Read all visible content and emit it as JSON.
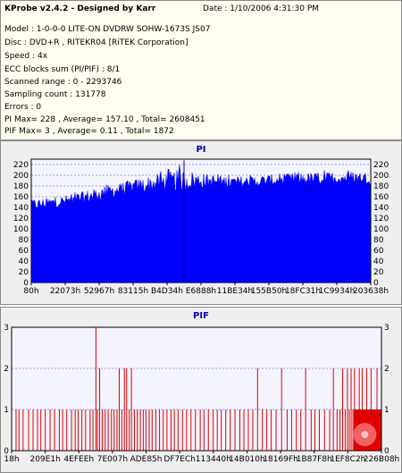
{
  "header": {
    "title": "KProbe v2.4.2 - Designed by Karr",
    "date": "Date : 1/10/2006 4:31:30 PM",
    "lines": [
      "Model : 1-0-0-0 LITE-ON DVDRW SOHW-1673S JS07",
      "Disc : DVD+R , RITEKR04 [RiTEK Corporation]",
      "Speed : 4x",
      "ECC blocks sum (PI/PIF) : 8/1",
      "Scanned range : 0 - 2293746",
      "Sampling count : 131778",
      "Errors : 0",
      "PI Max= 228 , Average= 157.10 , Total= 2608451",
      "PIF Max= 3 , Average= 0.11 , Total= 1872"
    ]
  },
  "colors": {
    "pi_fill": "#0000ff",
    "pif_bar": "#e00000",
    "plot_bg": "#f4f4ff",
    "grid": "#7f7fcf",
    "title": "#0000b0"
  },
  "chart_data": [
    {
      "type": "area",
      "title": "PI",
      "ylim": [
        0,
        230
      ],
      "yticks": [
        "0",
        "20",
        "40",
        "60",
        "80",
        "100",
        "120",
        "140",
        "160",
        "180",
        "200",
        "220"
      ],
      "xticks": [
        "80h",
        "22073h",
        "52967h",
        "83115h",
        "B4D34h",
        "E6888h",
        "11BE34h",
        "155B50h",
        "18FC31h",
        "1C9934h",
        "203638h"
      ],
      "grid": true,
      "profile": {
        "x_fraction": [
          0,
          0.05,
          0.1,
          0.15,
          0.2,
          0.25,
          0.3,
          0.35,
          0.4,
          0.45,
          0.5,
          0.55,
          0.6,
          0.65,
          0.7,
          0.75,
          0.8,
          0.85,
          0.9,
          0.95,
          1.0
        ],
        "avg_y": [
          145,
          148,
          152,
          158,
          165,
          172,
          178,
          183,
          188,
          190,
          190,
          188,
          187,
          188,
          190,
          192,
          193,
          194,
          195,
          196,
          195
        ],
        "max_y": [
          158,
          160,
          165,
          172,
          180,
          188,
          196,
          205,
          215,
          228,
          210,
          205,
          202,
          204,
          206,
          208,
          210,
          210,
          212,
          212,
          208
        ],
        "min_y": [
          130,
          132,
          136,
          140,
          146,
          152,
          158,
          162,
          166,
          170,
          172,
          172,
          172,
          174,
          176,
          178,
          178,
          180,
          180,
          180,
          178
        ]
      }
    },
    {
      "type": "bar",
      "title": "PIF",
      "ylim": [
        0,
        3
      ],
      "yticks": [
        "0",
        "1",
        "2",
        "3"
      ],
      "xticks": [
        "18h",
        "209E1h",
        "4EFEEh",
        "7E007h",
        "ADE85h",
        "DF7ECh",
        "113440h",
        "14B010h",
        "18169Fh",
        "1B87F8h",
        "1EF8C2h",
        "226B08h"
      ],
      "grid": true,
      "max_value": 3,
      "bars": [
        [
          0.012,
          1
        ],
        [
          0.02,
          1
        ],
        [
          0.031,
          1
        ],
        [
          0.046,
          1
        ],
        [
          0.058,
          1
        ],
        [
          0.07,
          1
        ],
        [
          0.079,
          1
        ],
        [
          0.091,
          1
        ],
        [
          0.104,
          1
        ],
        [
          0.116,
          1
        ],
        [
          0.129,
          1
        ],
        [
          0.138,
          1
        ],
        [
          0.149,
          1
        ],
        [
          0.162,
          1
        ],
        [
          0.172,
          1
        ],
        [
          0.18,
          1
        ],
        [
          0.19,
          1
        ],
        [
          0.2,
          1
        ],
        [
          0.212,
          1
        ],
        [
          0.22,
          1
        ],
        [
          0.228,
          3
        ],
        [
          0.232,
          1
        ],
        [
          0.238,
          2
        ],
        [
          0.245,
          1
        ],
        [
          0.253,
          1
        ],
        [
          0.261,
          1
        ],
        [
          0.27,
          1
        ],
        [
          0.277,
          1
        ],
        [
          0.285,
          1
        ],
        [
          0.291,
          2
        ],
        [
          0.298,
          1
        ],
        [
          0.305,
          2
        ],
        [
          0.311,
          2
        ],
        [
          0.318,
          1
        ],
        [
          0.324,
          2
        ],
        [
          0.332,
          1
        ],
        [
          0.34,
          1
        ],
        [
          0.348,
          1
        ],
        [
          0.356,
          1
        ],
        [
          0.363,
          1
        ],
        [
          0.372,
          1
        ],
        [
          0.38,
          1
        ],
        [
          0.39,
          1
        ],
        [
          0.4,
          1
        ],
        [
          0.41,
          1
        ],
        [
          0.42,
          1
        ],
        [
          0.431,
          1
        ],
        [
          0.44,
          1
        ],
        [
          0.45,
          1
        ],
        [
          0.462,
          1
        ],
        [
          0.473,
          1
        ],
        [
          0.485,
          1
        ],
        [
          0.497,
          1
        ],
        [
          0.51,
          1
        ],
        [
          0.52,
          1
        ],
        [
          0.532,
          1
        ],
        [
          0.545,
          1
        ],
        [
          0.556,
          1
        ],
        [
          0.567,
          1
        ],
        [
          0.579,
          1
        ],
        [
          0.591,
          1
        ],
        [
          0.604,
          1
        ],
        [
          0.617,
          1
        ],
        [
          0.628,
          1
        ],
        [
          0.64,
          1
        ],
        [
          0.652,
          1
        ],
        [
          0.665,
          2
        ],
        [
          0.678,
          1
        ],
        [
          0.69,
          1
        ],
        [
          0.702,
          1
        ],
        [
          0.715,
          1
        ],
        [
          0.73,
          2
        ],
        [
          0.745,
          1
        ],
        [
          0.757,
          1
        ],
        [
          0.77,
          1
        ],
        [
          0.782,
          1
        ],
        [
          0.795,
          2
        ],
        [
          0.81,
          1
        ],
        [
          0.82,
          1
        ],
        [
          0.832,
          1
        ],
        [
          0.846,
          1
        ],
        [
          0.86,
          1
        ],
        [
          0.87,
          2
        ],
        [
          0.88,
          1
        ],
        [
          0.888,
          1
        ],
        [
          0.895,
          2
        ],
        [
          0.902,
          1
        ],
        [
          0.908,
          2
        ],
        [
          0.913,
          1
        ],
        [
          0.918,
          2
        ],
        [
          0.923,
          1
        ],
        [
          0.927,
          2
        ],
        [
          0.932,
          1
        ],
        [
          0.936,
          1
        ],
        [
          0.94,
          2
        ],
        [
          0.944,
          1
        ],
        [
          0.948,
          2
        ],
        [
          0.952,
          1
        ],
        [
          0.956,
          1
        ],
        [
          0.96,
          2
        ],
        [
          0.964,
          1
        ],
        [
          0.968,
          1
        ],
        [
          0.972,
          2
        ],
        [
          0.976,
          1
        ],
        [
          0.98,
          1
        ],
        [
          0.984,
          1
        ],
        [
          0.988,
          2
        ],
        [
          0.992,
          1
        ],
        [
          0.996,
          1
        ]
      ]
    }
  ]
}
